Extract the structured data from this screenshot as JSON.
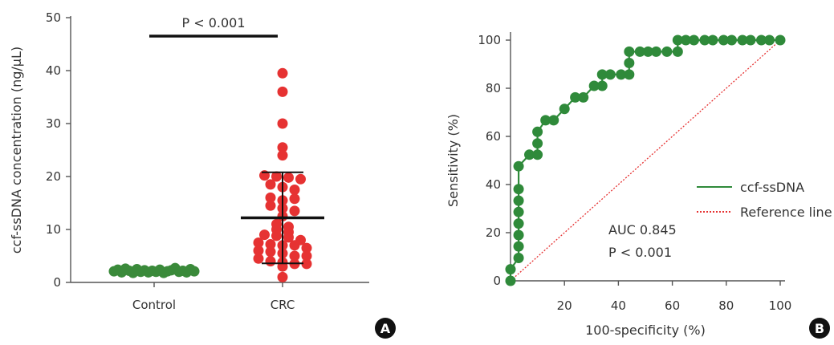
{
  "chart_data": [
    {
      "type": "scatter",
      "panel_label": "A",
      "categories": [
        "Control",
        "CRC"
      ],
      "ylabel": "ccf-ssDNA concentration (ng/µL)",
      "ylim": [
        0,
        50
      ],
      "yticks": [
        "0",
        "10",
        "20",
        "30",
        "40",
        "50"
      ],
      "significance": "P < 0.001",
      "series": [
        {
          "category": "Control",
          "color": "#3a8a3a",
          "values": [
            2.1,
            2.4,
            1.9,
            2.6,
            2.2,
            1.8,
            2.5,
            2.0,
            2.3,
            1.9,
            2.2,
            2.0,
            2.4,
            1.8,
            2.1,
            2.3,
            2.7,
            2.0,
            2.2,
            1.9,
            2.5,
            2.1
          ]
        },
        {
          "category": "CRC",
          "color": "#e63232",
          "values": [
            39.5,
            36.0,
            30.0,
            25.5,
            24.0,
            20.2,
            20.0,
            19.8,
            19.5,
            18.5,
            18.0,
            17.5,
            16.0,
            15.5,
            15.8,
            14.5,
            14.0,
            13.5,
            12.5,
            11.0,
            10.5,
            10.0,
            9.5,
            9.0,
            8.8,
            8.5,
            8.0,
            7.5,
            7.2,
            7.0,
            7.0,
            6.5,
            6.0,
            5.8,
            5.5,
            5.0,
            5.0,
            4.5,
            4.0,
            3.8,
            3.5,
            3.5,
            3.0,
            1.0
          ]
        }
      ],
      "mean_line": 12.2,
      "sd_upper": 20.8,
      "sd_lower": 3.6
    },
    {
      "type": "line",
      "panel_label": "B",
      "xlabel": "100-specificity (%)",
      "ylabel": "Sensitivity (%)",
      "xlim": [
        0,
        100
      ],
      "ylim": [
        0,
        100
      ],
      "xticks": [
        "20",
        "40",
        "60",
        "80",
        "100"
      ],
      "yticks": [
        "0",
        "20",
        "40",
        "60",
        "80",
        "100"
      ],
      "legend": [
        "ccf-ssDNA",
        "Reference line"
      ],
      "annotation": [
        "AUC 0.845",
        "P < 0.001"
      ],
      "series": [
        {
          "name": "ccf-ssDNA",
          "color": "#2f8a3a",
          "x": [
            0,
            0,
            3,
            3,
            3,
            3,
            3,
            3,
            3,
            3,
            7,
            10,
            10,
            10,
            13,
            16,
            20,
            24,
            27,
            31,
            34,
            34,
            37,
            41,
            44,
            44,
            44,
            48,
            51,
            54,
            58,
            62,
            62,
            65,
            68,
            72,
            75,
            79,
            82,
            86,
            89,
            93,
            96,
            100
          ],
          "y": [
            0,
            4.8,
            9.5,
            14.3,
            19,
            23.8,
            28.6,
            33.3,
            38.1,
            47.6,
            52.4,
            52.4,
            57.1,
            61.9,
            66.7,
            66.7,
            71.4,
            76.2,
            76.2,
            81,
            81,
            85.7,
            85.7,
            85.7,
            85.7,
            90.5,
            95.2,
            95.2,
            95.2,
            95.2,
            95.2,
            95.2,
            100,
            100,
            100,
            100,
            100,
            100,
            100,
            100,
            100,
            100,
            100,
            100
          ]
        },
        {
          "name": "Reference line",
          "color": "#e63232",
          "x": [
            0,
            100
          ],
          "y": [
            0,
            100
          ]
        }
      ]
    }
  ]
}
